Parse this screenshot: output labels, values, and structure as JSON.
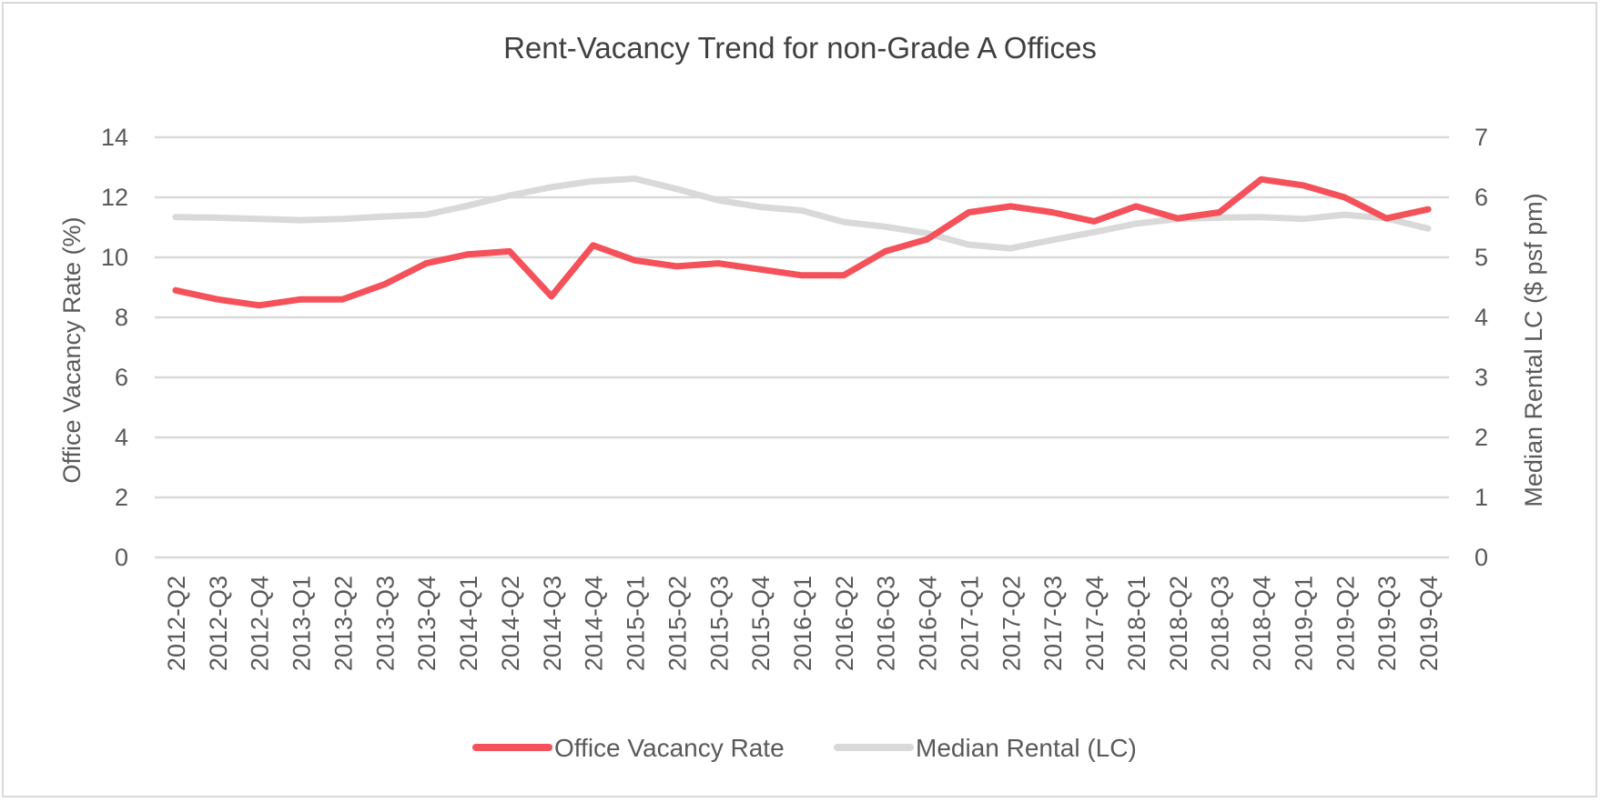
{
  "chart_data": {
    "type": "line",
    "title": "Rent-Vacancy Trend for non-Grade A Offices",
    "categories": [
      "2012-Q2",
      "2012-Q3",
      "2012-Q4",
      "2013-Q1",
      "2013-Q2",
      "2013-Q3",
      "2013-Q4",
      "2014-Q1",
      "2014-Q2",
      "2014-Q3",
      "2014-Q4",
      "2015-Q1",
      "2015-Q2",
      "2015-Q3",
      "2015-Q4",
      "2016-Q1",
      "2016-Q2",
      "2016-Q3",
      "2016-Q4",
      "2017-Q1",
      "2017-Q2",
      "2017-Q3",
      "2017-Q4",
      "2018-Q1",
      "2018-Q2",
      "2018-Q3",
      "2018-Q4",
      "2019-Q1",
      "2019-Q2",
      "2019-Q3",
      "2019-Q4"
    ],
    "ylabel": "Office Vacancy Rate (%)",
    "y2label": "Median Rental LC ($ psf pm)",
    "ylim": [
      0,
      14
    ],
    "y2lim": [
      0,
      7
    ],
    "yticks": [
      "0",
      "2",
      "4",
      "6",
      "8",
      "10",
      "12",
      "14"
    ],
    "y2ticks": [
      "0",
      "1",
      "2",
      "3",
      "4",
      "5",
      "6",
      "7"
    ],
    "grid": true,
    "legend_position": "bottom",
    "series": [
      {
        "name": "Office Vacancy Rate",
        "axis": "left",
        "color": "#f4515a",
        "values": [
          8.9,
          8.6,
          8.4,
          8.6,
          8.6,
          9.1,
          9.8,
          10.1,
          10.2,
          8.7,
          10.4,
          9.9,
          9.7,
          9.8,
          9.6,
          9.4,
          9.4,
          10.2,
          10.6,
          11.5,
          11.7,
          11.5,
          11.2,
          11.7,
          11.3,
          11.5,
          12.6,
          12.4,
          12.0,
          11.3,
          11.6
        ]
      },
      {
        "name": "Median Rental (LC)",
        "axis": "right",
        "color": "#d9d9d9",
        "values": [
          5.67,
          5.66,
          5.64,
          5.62,
          5.64,
          5.68,
          5.71,
          5.86,
          6.03,
          6.17,
          6.27,
          6.31,
          6.14,
          5.95,
          5.84,
          5.78,
          5.59,
          5.51,
          5.4,
          5.21,
          5.15,
          5.29,
          5.42,
          5.56,
          5.64,
          5.66,
          5.67,
          5.64,
          5.71,
          5.65,
          5.48
        ]
      }
    ]
  }
}
